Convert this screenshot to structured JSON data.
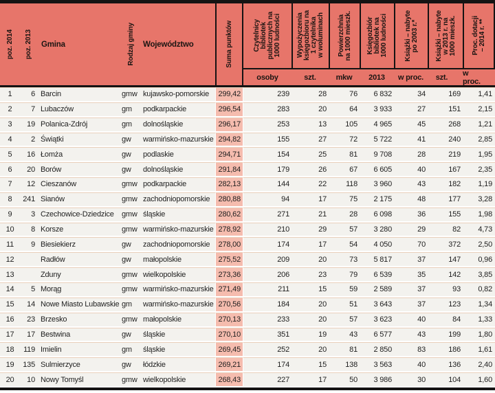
{
  "colors": {
    "header_bg": "#e7756a",
    "score_col_bg": "#f5bcae",
    "row_bg": "#f3f2ee",
    "row_divider": "#e9cfba",
    "border_black": "#151313",
    "text": "#1e1e1e"
  },
  "table": {
    "column_keys": [
      "poz2014",
      "poz2013",
      "gmina",
      "rodzaj-gminy",
      "wojewodztwo",
      "suma-punktow",
      "czytelnicy",
      "wypozyczenia",
      "powierzchnia",
      "ksiegozbior",
      "ksiazki-po-2003",
      "ksiazki-2013",
      "proc-dotacji"
    ],
    "columns": [
      {
        "key": "poz2014",
        "label": "poz. 2014"
      },
      {
        "key": "poz2013",
        "label": "poz. 2013"
      },
      {
        "key": "gmina",
        "label": "Gmina"
      },
      {
        "key": "rodzaj-gminy",
        "label": "Rodzaj gminy"
      },
      {
        "key": "wojewodztwo",
        "label": "Województwo"
      },
      {
        "key": "suma-punktow",
        "label": "Suma punktów"
      },
      {
        "key": "czytelnicy",
        "label": "Czytelnicy\nbibliotek\npublicznych na\n1000 ludności",
        "sub": "osoby"
      },
      {
        "key": "wypozyczenia",
        "label": "Wypożyczenia\nksięgozbioru na\n1 czytelnika\nw woluminach",
        "sub": "szt."
      },
      {
        "key": "powierzchnia",
        "label": "Powierzchnia\nna 1000 mieszk.",
        "sub": "mkw"
      },
      {
        "key": "ksiegozbior",
        "label": "Księgozbiór\nbibliotek na\n1000 ludności",
        "sub": "2013"
      },
      {
        "key": "ksiazki-po-2003",
        "label": "Książki – nabyte\npo 2003 r.*",
        "sub": "w proc."
      },
      {
        "key": "ksiazki-2013",
        "label": "Książki – nabyte\nw 2013 r. na\n1000 mieszk.",
        "sub": "szt."
      },
      {
        "key": "proc-dotacji",
        "label": "Proc. dotacji\n– 2014 r. **",
        "sub": "w proc."
      }
    ],
    "rows": [
      [
        "1",
        "6",
        "Barcin",
        "gmw",
        "kujawsko-pomorskie",
        "299,42",
        "239",
        "28",
        "76",
        "6 832",
        "34",
        "169",
        "1,41"
      ],
      [
        "2",
        "7",
        "Lubaczów",
        "gm",
        "podkarpackie",
        "296,54",
        "283",
        "20",
        "64",
        "3 933",
        "27",
        "151",
        "2,15"
      ],
      [
        "3",
        "19",
        "Polanica-Zdrój",
        "gm",
        "dolnośląskie",
        "296,17",
        "253",
        "13",
        "105",
        "4 965",
        "45",
        "268",
        "1,21"
      ],
      [
        "4",
        "2",
        "Świątki",
        "gw",
        "warmińsko-mazurskie",
        "294,82",
        "155",
        "27",
        "72",
        "5 722",
        "41",
        "240",
        "2,85"
      ],
      [
        "5",
        "16",
        "Łomża",
        "gw",
        "podlaskie",
        "294,71",
        "154",
        "25",
        "81",
        "9 708",
        "28",
        "219",
        "1,95"
      ],
      [
        "6",
        "20",
        "Borów",
        "gw",
        "dolnośląskie",
        "291,84",
        "179",
        "26",
        "67",
        "6 605",
        "40",
        "167",
        "2,35"
      ],
      [
        "7",
        "12",
        "Cieszanów",
        "gmw",
        "podkarpackie",
        "282,13",
        "144",
        "22",
        "118",
        "3 960",
        "43",
        "182",
        "1,19"
      ],
      [
        "8",
        "241",
        "Sianów",
        "gmw",
        "zachodniopomorskie",
        "280,88",
        "94",
        "17",
        "75",
        "2 175",
        "48",
        "177",
        "3,28"
      ],
      [
        "9",
        "3",
        "Czechowice-Dziedzice",
        "gmw",
        "śląskie",
        "280,62",
        "271",
        "21",
        "28",
        "6 098",
        "36",
        "155",
        "1,98"
      ],
      [
        "10",
        "8",
        "Korsze",
        "gmw",
        "warmińsko-mazurskie",
        "278,92",
        "210",
        "29",
        "57",
        "3 280",
        "29",
        "82",
        "4,73"
      ],
      [
        "11",
        "9",
        "Biesiekierz",
        "gw",
        "zachodniopomorskie",
        "278,00",
        "174",
        "17",
        "54",
        "4 050",
        "70",
        "372",
        "2,50"
      ],
      [
        "12",
        "",
        "Radłów",
        "gw",
        "małopolskie",
        "275,52",
        "209",
        "20",
        "73",
        "5 817",
        "37",
        "147",
        "0,96"
      ],
      [
        "13",
        "",
        "Zduny",
        "gmw",
        "wielkopolskie",
        "273,36",
        "206",
        "23",
        "79",
        "6 539",
        "35",
        "142",
        "3,85"
      ],
      [
        "14",
        "5",
        "Morąg",
        "gmw",
        "warmińsko-mazurskie",
        "271,49",
        "211",
        "15",
        "59",
        "2 589",
        "37",
        "93",
        "0,82"
      ],
      [
        "15",
        "14",
        "Nowe Miasto Lubawskie",
        "gm",
        "warmińsko-mazurskie",
        "270,56",
        "184",
        "20",
        "51",
        "3 643",
        "37",
        "123",
        "1,34"
      ],
      [
        "16",
        "23",
        "Brzesko",
        "gmw",
        "małopolskie",
        "270,13",
        "233",
        "20",
        "57",
        "3 623",
        "40",
        "84",
        "1,33"
      ],
      [
        "17",
        "17",
        "Bestwina",
        "gw",
        "śląskie",
        "270,10",
        "351",
        "19",
        "43",
        "6 577",
        "43",
        "199",
        "1,80"
      ],
      [
        "18",
        "119",
        "Imielin",
        "gm",
        "śląskie",
        "269,45",
        "252",
        "20",
        "81",
        "2 850",
        "83",
        "186",
        "1,61"
      ],
      [
        "19",
        "135",
        "Sulmierzyce",
        "gw",
        "łódzkie",
        "269,21",
        "174",
        "15",
        "138",
        "3 563",
        "40",
        "136",
        "2,40"
      ],
      [
        "20",
        "10",
        "Nowy Tomyśl",
        "gmw",
        "wielkopolskie",
        "268,43",
        "227",
        "17",
        "50",
        "3 986",
        "30",
        "104",
        "1,60"
      ]
    ]
  }
}
